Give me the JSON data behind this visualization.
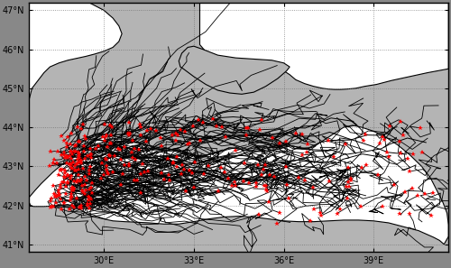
{
  "xlim": [
    27.5,
    41.5
  ],
  "ylim": [
    40.8,
    47.2
  ],
  "xticks": [
    30,
    33,
    36,
    39
  ],
  "yticks": [
    41,
    42,
    43,
    44,
    45,
    46,
    47
  ],
  "xlabel_labels": [
    "30°E",
    "33°E",
    "36°E",
    "39°E"
  ],
  "ylabel_labels": [
    "41°N",
    "42°N",
    "43°N",
    "44°N",
    "45°N",
    "46°N",
    "47°N"
  ],
  "background_color": "#b4b4b4",
  "sea_color": "#ffffff",
  "track_color": "#000000",
  "star_color": "#ff0000",
  "figsize": [
    5.0,
    2.97
  ],
  "dpi": 100,
  "black_sea_poly": [
    [
      27.5,
      42.08
    ],
    [
      27.55,
      42.0
    ],
    [
      27.65,
      41.97
    ],
    [
      27.8,
      41.97
    ],
    [
      28.0,
      41.97
    ],
    [
      28.2,
      41.98
    ],
    [
      28.5,
      42.0
    ],
    [
      28.8,
      42.02
    ],
    [
      29.0,
      41.97
    ],
    [
      29.3,
      41.85
    ],
    [
      29.5,
      41.75
    ],
    [
      29.7,
      41.7
    ],
    [
      30.0,
      41.65
    ],
    [
      30.3,
      41.6
    ],
    [
      30.7,
      41.58
    ],
    [
      31.0,
      41.57
    ],
    [
      31.5,
      41.55
    ],
    [
      32.0,
      41.52
    ],
    [
      32.5,
      41.52
    ],
    [
      33.0,
      41.58
    ],
    [
      33.5,
      41.65
    ],
    [
      34.0,
      41.7
    ],
    [
      34.5,
      41.72
    ],
    [
      35.0,
      41.7
    ],
    [
      35.5,
      41.65
    ],
    [
      36.0,
      41.6
    ],
    [
      36.5,
      41.58
    ],
    [
      37.0,
      41.58
    ],
    [
      37.5,
      41.6
    ],
    [
      38.0,
      41.62
    ],
    [
      38.5,
      41.62
    ],
    [
      39.0,
      41.6
    ],
    [
      39.5,
      41.55
    ],
    [
      40.0,
      41.45
    ],
    [
      40.5,
      41.35
    ],
    [
      41.0,
      41.18
    ],
    [
      41.2,
      41.1
    ],
    [
      41.35,
      41.0
    ],
    [
      41.5,
      41.2
    ],
    [
      41.5,
      41.5
    ],
    [
      41.45,
      41.8
    ],
    [
      41.3,
      42.1
    ],
    [
      41.1,
      42.4
    ],
    [
      40.9,
      42.7
    ],
    [
      40.6,
      43.0
    ],
    [
      40.2,
      43.3
    ],
    [
      39.8,
      43.55
    ],
    [
      39.4,
      43.75
    ],
    [
      39.0,
      43.9
    ],
    [
      38.6,
      44.0
    ],
    [
      38.3,
      44.05
    ],
    [
      38.0,
      44.0
    ],
    [
      37.8,
      43.9
    ],
    [
      37.5,
      43.75
    ],
    [
      37.2,
      43.6
    ],
    [
      37.0,
      43.5
    ],
    [
      36.8,
      43.45
    ],
    [
      36.6,
      43.45
    ],
    [
      36.5,
      43.48
    ],
    [
      36.4,
      43.5
    ],
    [
      36.3,
      43.52
    ],
    [
      36.2,
      43.52
    ],
    [
      36.1,
      43.5
    ],
    [
      36.0,
      43.48
    ],
    [
      35.9,
      43.45
    ],
    [
      35.7,
      43.42
    ],
    [
      35.5,
      43.4
    ],
    [
      35.2,
      43.38
    ],
    [
      35.0,
      43.38
    ],
    [
      34.8,
      43.4
    ],
    [
      34.6,
      43.42
    ],
    [
      34.5,
      43.45
    ],
    [
      34.3,
      43.47
    ],
    [
      34.2,
      43.47
    ],
    [
      34.1,
      43.45
    ],
    [
      34.0,
      43.42
    ],
    [
      33.9,
      43.38
    ],
    [
      33.7,
      43.33
    ],
    [
      33.5,
      43.3
    ],
    [
      33.3,
      43.28
    ],
    [
      33.1,
      43.28
    ],
    [
      33.0,
      43.3
    ],
    [
      32.9,
      43.32
    ],
    [
      32.8,
      43.35
    ],
    [
      32.7,
      43.37
    ],
    [
      32.5,
      43.4
    ],
    [
      32.3,
      43.43
    ],
    [
      32.1,
      43.45
    ],
    [
      31.9,
      43.47
    ],
    [
      31.7,
      43.5
    ],
    [
      31.5,
      43.53
    ],
    [
      31.3,
      43.57
    ],
    [
      31.1,
      43.6
    ],
    [
      30.9,
      43.65
    ],
    [
      30.7,
      43.7
    ],
    [
      30.5,
      43.75
    ],
    [
      30.3,
      43.78
    ],
    [
      30.1,
      43.77
    ],
    [
      29.9,
      43.72
    ],
    [
      29.7,
      43.65
    ],
    [
      29.5,
      43.55
    ],
    [
      29.3,
      43.45
    ],
    [
      29.1,
      43.35
    ],
    [
      28.9,
      43.22
    ],
    [
      28.7,
      43.1
    ],
    [
      28.5,
      42.98
    ],
    [
      28.3,
      42.85
    ],
    [
      28.1,
      42.7
    ],
    [
      27.9,
      42.55
    ],
    [
      27.7,
      42.38
    ],
    [
      27.5,
      42.2
    ],
    [
      27.5,
      42.08
    ]
  ],
  "crimea_poly": [
    [
      32.65,
      45.5
    ],
    [
      33.0,
      45.3
    ],
    [
      33.4,
      45.1
    ],
    [
      33.8,
      44.95
    ],
    [
      34.2,
      44.88
    ],
    [
      34.6,
      44.85
    ],
    [
      35.0,
      44.9
    ],
    [
      35.4,
      45.05
    ],
    [
      35.8,
      45.25
    ],
    [
      36.1,
      45.45
    ],
    [
      36.2,
      45.55
    ],
    [
      36.0,
      45.65
    ],
    [
      35.6,
      45.72
    ],
    [
      35.0,
      45.75
    ],
    [
      34.4,
      45.78
    ],
    [
      33.8,
      45.85
    ],
    [
      33.3,
      46.0
    ],
    [
      33.0,
      46.08
    ],
    [
      32.8,
      46.05
    ],
    [
      32.6,
      45.9
    ],
    [
      32.5,
      45.7
    ],
    [
      32.55,
      45.55
    ],
    [
      32.65,
      45.5
    ]
  ],
  "nw_sea_poly": [
    [
      27.5,
      44.0
    ],
    [
      27.5,
      47.2
    ],
    [
      29.5,
      47.2
    ],
    [
      30.0,
      47.0
    ],
    [
      30.3,
      46.8
    ],
    [
      30.5,
      46.6
    ],
    [
      30.6,
      46.4
    ],
    [
      30.5,
      46.2
    ],
    [
      30.3,
      46.05
    ],
    [
      30.0,
      45.95
    ],
    [
      29.7,
      45.88
    ],
    [
      29.4,
      45.82
    ],
    [
      29.1,
      45.77
    ],
    [
      28.8,
      45.72
    ],
    [
      28.5,
      45.65
    ],
    [
      28.2,
      45.55
    ],
    [
      28.0,
      45.4
    ],
    [
      27.8,
      45.2
    ],
    [
      27.6,
      45.0
    ],
    [
      27.5,
      44.7
    ],
    [
      27.5,
      44.0
    ]
  ],
  "azov_poly": [
    [
      33.5,
      47.2
    ],
    [
      41.5,
      47.2
    ],
    [
      41.5,
      45.5
    ],
    [
      40.8,
      45.4
    ],
    [
      40.2,
      45.3
    ],
    [
      39.6,
      45.2
    ],
    [
      39.1,
      45.1
    ],
    [
      38.7,
      45.05
    ],
    [
      38.4,
      45.0
    ],
    [
      38.1,
      44.98
    ],
    [
      37.9,
      44.97
    ],
    [
      37.7,
      44.97
    ],
    [
      37.5,
      44.98
    ],
    [
      37.3,
      45.0
    ],
    [
      37.0,
      45.05
    ],
    [
      36.7,
      45.12
    ],
    [
      36.4,
      45.22
    ],
    [
      36.2,
      45.35
    ],
    [
      36.0,
      45.45
    ],
    [
      35.5,
      45.55
    ],
    [
      35.0,
      45.6
    ],
    [
      34.5,
      45.65
    ],
    [
      34.0,
      45.7
    ],
    [
      33.5,
      45.85
    ],
    [
      33.2,
      46.12
    ],
    [
      33.2,
      47.2
    ],
    [
      33.5,
      47.2
    ]
  ]
}
